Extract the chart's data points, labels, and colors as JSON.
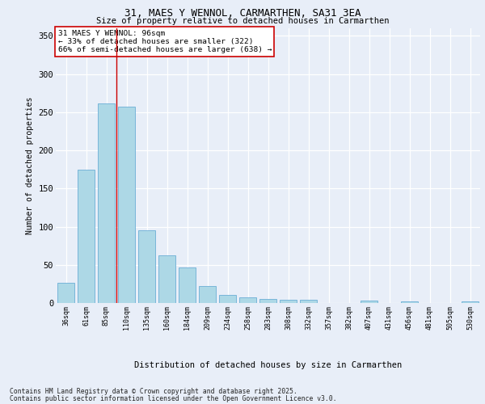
{
  "title1": "31, MAES Y WENNOL, CARMARTHEN, SA31 3EA",
  "title2": "Size of property relative to detached houses in Carmarthen",
  "xlabel": "Distribution of detached houses by size in Carmarthen",
  "ylabel": "Number of detached properties",
  "categories": [
    "36sqm",
    "61sqm",
    "85sqm",
    "110sqm",
    "135sqm",
    "160sqm",
    "184sqm",
    "209sqm",
    "234sqm",
    "258sqm",
    "283sqm",
    "308sqm",
    "332sqm",
    "357sqm",
    "382sqm",
    "407sqm",
    "431sqm",
    "456sqm",
    "481sqm",
    "505sqm",
    "530sqm"
  ],
  "values": [
    27,
    175,
    262,
    257,
    95,
    63,
    47,
    22,
    11,
    7,
    5,
    4,
    4,
    0,
    0,
    3,
    0,
    2,
    0,
    0,
    2
  ],
  "bar_color": "#add8e6",
  "bar_edge_color": "#6baed6",
  "vline_x": 2.5,
  "vline_color": "#cc0000",
  "annotation_text": "31 MAES Y WENNOL: 96sqm\n← 33% of detached houses are smaller (322)\n66% of semi-detached houses are larger (638) →",
  "annotation_box_color": "#ffffff",
  "annotation_box_edge": "#cc0000",
  "ylim": [
    0,
    360
  ],
  "yticks": [
    0,
    50,
    100,
    150,
    200,
    250,
    300,
    350
  ],
  "background_color": "#e8eef8",
  "grid_color": "#ffffff",
  "footer1": "Contains HM Land Registry data © Crown copyright and database right 2025.",
  "footer2": "Contains public sector information licensed under the Open Government Licence v3.0."
}
